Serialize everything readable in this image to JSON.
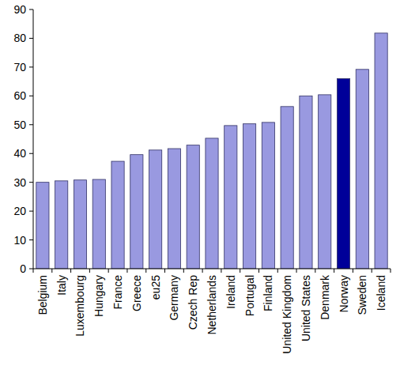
{
  "chart_data": {
    "type": "bar",
    "categories": [
      "Belgium",
      "Italy",
      "Luxembourg",
      "Hungary",
      "France",
      "Greece",
      "eu25",
      "Germany",
      "Czech Rep",
      "Netherlands",
      "Ireland",
      "Portugal",
      "Finland",
      "United Kingdom",
      "United States",
      "Denmark",
      "Norway",
      "Sweden",
      "Iceland"
    ],
    "values": [
      30,
      30.5,
      30.8,
      31,
      37.3,
      39.6,
      41.2,
      41.7,
      42.9,
      45.3,
      49.7,
      50.3,
      50.8,
      56.3,
      60,
      60.4,
      66,
      69.2,
      81.8
    ],
    "colors": [
      "#9999e0",
      "#9999e0",
      "#9999e0",
      "#9999e0",
      "#9999e0",
      "#9999e0",
      "#9999e0",
      "#9999e0",
      "#9999e0",
      "#9999e0",
      "#9999e0",
      "#9999e0",
      "#9999e0",
      "#9999e0",
      "#9999e0",
      "#9999e0",
      "#000099",
      "#9999e0",
      "#9999e0"
    ],
    "ylim": [
      0,
      90
    ],
    "yticks": [
      0,
      10,
      20,
      30,
      40,
      50,
      60,
      70,
      80,
      90
    ],
    "grid": false
  }
}
